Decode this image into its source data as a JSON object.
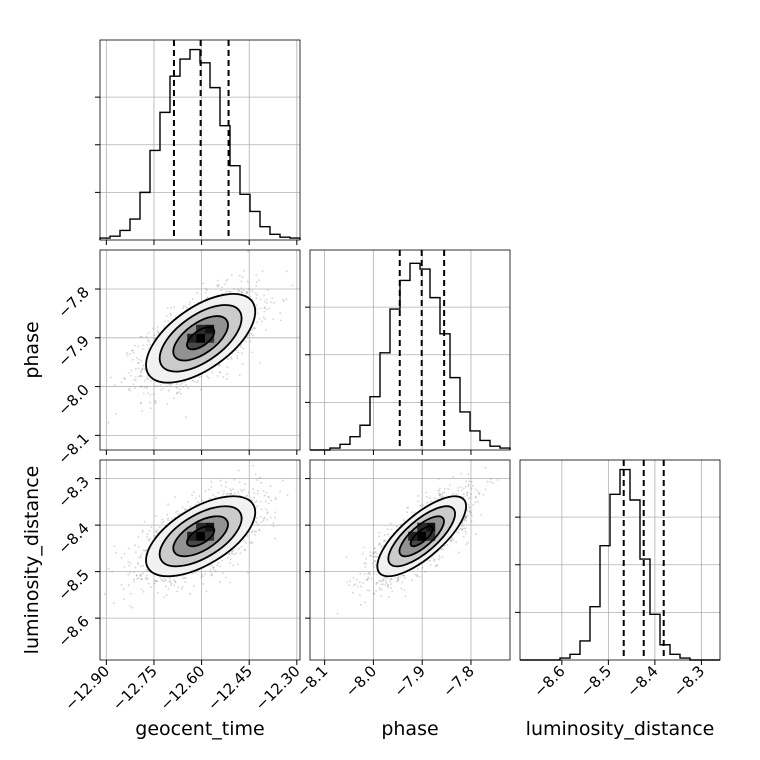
{
  "chart_data": {
    "type": "corner",
    "parameters": [
      {
        "name": "geocent_time",
        "label": "geocent_time",
        "range": [
          -12.92,
          -12.29
        ],
        "ticks": [
          -12.9,
          -12.75,
          -12.6,
          -12.45,
          -12.3
        ],
        "tick_labels": [
          "−12.90",
          "−12.75",
          "−12.60",
          "−12.45",
          "−12.30"
        ],
        "quantiles": [
          -12.687,
          -12.603,
          -12.515
        ],
        "hist_bins": [
          0.01,
          0.02,
          0.05,
          0.11,
          0.25,
          0.47,
          0.67,
          0.86,
          0.95,
          1.0,
          0.93,
          0.8,
          0.6,
          0.39,
          0.24,
          0.15,
          0.07,
          0.03,
          0.015,
          0.01
        ]
      },
      {
        "name": "phase",
        "label": "phase",
        "range": [
          -8.13,
          -7.72
        ],
        "ticks": [
          -8.1,
          -8.0,
          -7.9,
          -7.8
        ],
        "tick_labels": [
          "−8.1",
          "−8.0",
          "−7.9",
          "−7.8"
        ],
        "quantiles": [
          -7.946,
          -7.901,
          -7.855
        ],
        "hist_bins": [
          0.0,
          0.0,
          0.01,
          0.03,
          0.07,
          0.13,
          0.28,
          0.51,
          0.74,
          0.89,
          0.98,
          0.95,
          0.8,
          0.61,
          0.38,
          0.2,
          0.1,
          0.05,
          0.02,
          0.01
        ]
      },
      {
        "name": "luminosity_distance",
        "label": "luminosity_distance",
        "range": [
          -8.69,
          -8.26
        ],
        "ticks": [
          -8.6,
          -8.5,
          -8.4,
          -8.3
        ],
        "tick_labels": [
          "−8.6",
          "−8.5",
          "−8.4",
          "−8.3"
        ],
        "quantiles": [
          -8.467,
          -8.424,
          -8.381
        ],
        "hist_bins": [
          0.0,
          0.0,
          0.0,
          0.0,
          0.01,
          0.03,
          0.1,
          0.28,
          0.6,
          0.87,
          1.0,
          0.84,
          0.53,
          0.24,
          0.08,
          0.03,
          0.01,
          0.0,
          0.0,
          0.0
        ]
      }
    ],
    "hist_ylim": [
      0,
      1.05
    ],
    "pairs": [
      {
        "x": "geocent_time",
        "y": "phase",
        "x_mean": -12.603,
        "y_mean": -7.901,
        "correlation": 0.6
      },
      {
        "x": "geocent_time",
        "y": "luminosity_distance",
        "x_mean": -12.603,
        "y_mean": -8.424,
        "correlation": 0.6
      },
      {
        "x": "phase",
        "y": "luminosity_distance",
        "x_mean": -7.901,
        "y_mean": -8.424,
        "correlation": 0.75
      }
    ],
    "contour_levels_sigma": [
      0.5,
      1.0,
      1.5,
      2.0
    ],
    "density_colormap": "greys",
    "scatter_color": "#808080",
    "line_color": "#000000",
    "grid": true,
    "diagonal_ticks_labeled": false
  }
}
